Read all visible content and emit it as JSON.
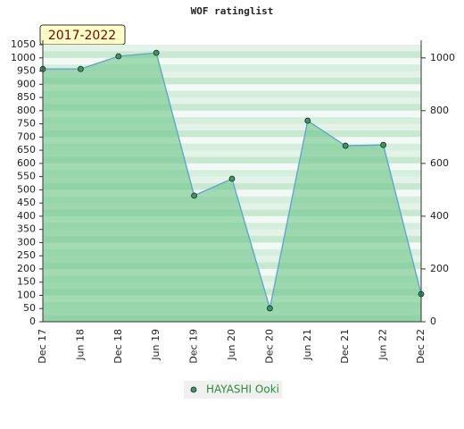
{
  "chart_data": {
    "type": "area",
    "title": "WOF ratinglist",
    "annotation": "2017-2022",
    "categories": [
      "Dec 17",
      "Jun 18",
      "Dec 18",
      "Jun 19",
      "Dec 19",
      "Jun 20",
      "Dec 20",
      "Jun 21",
      "Dec 21",
      "Jun 22",
      "Dec 22"
    ],
    "series": [
      {
        "name": "HAYASHI Ooki",
        "color": "#5ba3d0",
        "fill": "#6cc488",
        "values": [
          958,
          958,
          1006,
          1019,
          478,
          542,
          51,
          762,
          667,
          670,
          105
        ]
      }
    ],
    "ylim": [
      0,
      1050
    ],
    "yticks": [
      0,
      50,
      100,
      150,
      200,
      250,
      300,
      350,
      400,
      450,
      500,
      550,
      600,
      650,
      700,
      750,
      800,
      850,
      900,
      950,
      1000,
      1050
    ],
    "y2lim": [
      0,
      1050
    ],
    "y2ticks": [
      0,
      200,
      400,
      600,
      800,
      1000
    ],
    "legend": "bottom"
  }
}
